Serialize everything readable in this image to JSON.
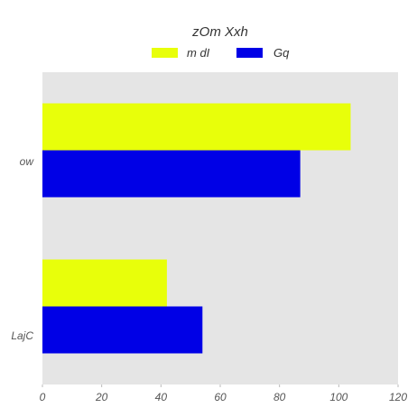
{
  "chart_data": {
    "type": "bar",
    "orientation": "horizontal",
    "title": "zOm Xxh",
    "xlabel": "",
    "ylabel": "",
    "categories": [
      "ow",
      "LajC"
    ],
    "series": [
      {
        "name": "m dI",
        "values": [
          104,
          42
        ],
        "color": "#e8ff0a"
      },
      {
        "name": "Gq",
        "values": [
          87,
          54
        ],
        "color": "#0000e6"
      }
    ],
    "xlim": [
      0,
      120
    ],
    "xticks": [
      0,
      20,
      40,
      60,
      80,
      100,
      120
    ],
    "grid": false,
    "legend_position": "top-center",
    "plot_background": "#e5e5e5"
  }
}
